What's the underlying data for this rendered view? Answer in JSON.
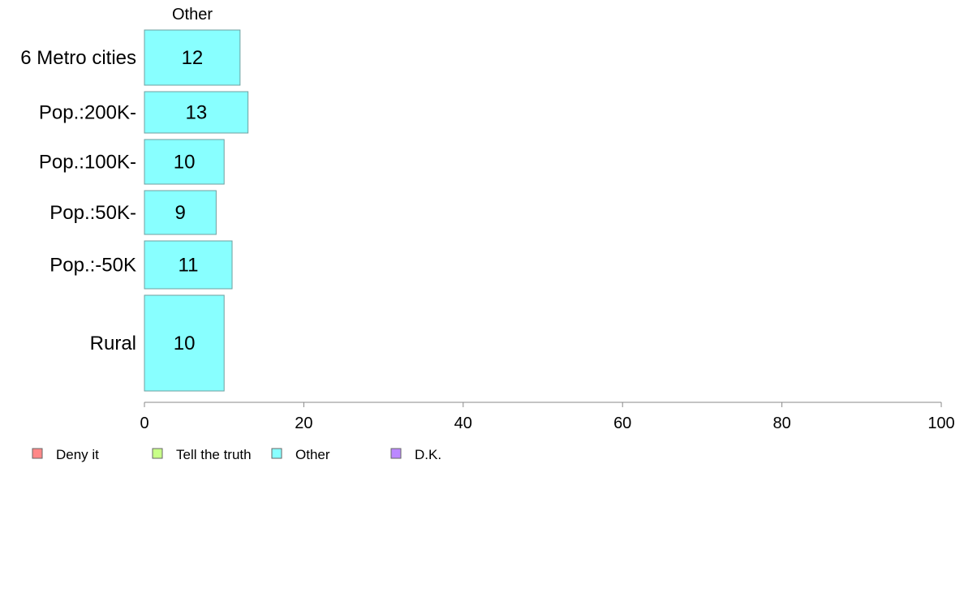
{
  "chart_data": {
    "type": "bar",
    "orientation": "horizontal",
    "title": "Other",
    "categories": [
      "6 Metro cities",
      "Pop.:200K-",
      "Pop.:100K-",
      "Pop.:50K-",
      "Pop.:-50K",
      "Rural"
    ],
    "series": [
      {
        "name": "Other",
        "values": [
          12,
          13,
          10,
          9,
          11,
          10
        ],
        "color": "#88ffff"
      }
    ],
    "xlim": [
      0,
      100
    ],
    "xticks": [
      0,
      20,
      40,
      60,
      80,
      100
    ],
    "xlabel": "",
    "ylabel": "",
    "grid": false,
    "legend_position": "bottom-left",
    "legend": [
      {
        "label": "Deny it",
        "color": "#ff8888"
      },
      {
        "label": "Tell the truth",
        "color": "#c8ff88"
      },
      {
        "label": "Other",
        "color": "#88ffff"
      },
      {
        "label": "D.K.",
        "color": "#bb88ff"
      }
    ]
  }
}
